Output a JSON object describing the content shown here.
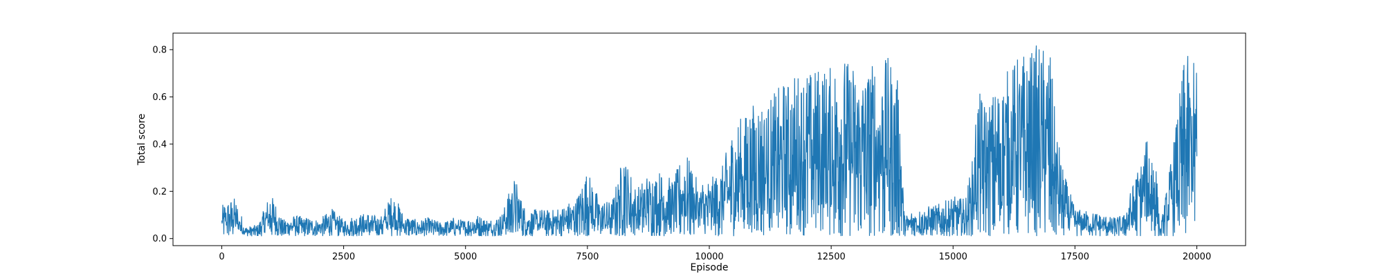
{
  "chart_data": {
    "type": "line",
    "title": "",
    "xlabel": "Episode",
    "ylabel": "Total score",
    "xlim": [
      -1000,
      21000
    ],
    "ylim": [
      -0.03,
      0.87
    ],
    "xticks": [
      0,
      2500,
      5000,
      7500,
      10000,
      12500,
      15000,
      17500,
      20000
    ],
    "yticks": [
      0.0,
      0.2,
      0.4,
      0.6,
      0.8
    ],
    "xtick_labels": [
      "0",
      "2500",
      "5000",
      "7500",
      "10000",
      "12500",
      "15000",
      "17500",
      "20000"
    ],
    "ytick_labels": [
      "0.0",
      "0.2",
      "0.4",
      "0.6",
      "0.8"
    ],
    "grid": false,
    "legend": "none",
    "line_color": "#1f77b4",
    "series": [
      {
        "x": [
          0,
          250,
          500,
          750,
          1000,
          1250,
          1500,
          1750,
          2000,
          2250,
          2500,
          2750,
          3000,
          3250,
          3500,
          3750,
          4000,
          4250,
          4500,
          4750,
          5000,
          5250,
          5500,
          5750,
          6000,
          6250,
          6500,
          6750,
          7000,
          7250,
          7500,
          7750,
          8000,
          8250,
          8500,
          8750,
          9000,
          9250,
          9500,
          9750,
          10000,
          10250,
          10500,
          10750,
          11000,
          11250,
          11500,
          11750,
          12000,
          12250,
          12500,
          12750,
          13000,
          13250,
          13500,
          13750,
          13900,
          14000,
          14250,
          14500,
          14750,
          15000,
          15250,
          15400,
          15500,
          15750,
          16000,
          16250,
          16500,
          16750,
          17000,
          17100,
          17250,
          17500,
          17750,
          18000,
          18250,
          18500,
          18750,
          19000,
          19150,
          19250,
          19500,
          19750,
          19950,
          20000
        ],
        "max": [
          0.14,
          0.18,
          0.05,
          0.06,
          0.2,
          0.08,
          0.1,
          0.09,
          0.08,
          0.13,
          0.08,
          0.1,
          0.11,
          0.09,
          0.2,
          0.1,
          0.08,
          0.09,
          0.07,
          0.09,
          0.08,
          0.1,
          0.08,
          0.11,
          0.27,
          0.11,
          0.13,
          0.12,
          0.14,
          0.17,
          0.29,
          0.17,
          0.16,
          0.37,
          0.21,
          0.28,
          0.29,
          0.25,
          0.38,
          0.25,
          0.25,
          0.3,
          0.48,
          0.55,
          0.6,
          0.6,
          0.66,
          0.7,
          0.72,
          0.74,
          0.73,
          0.78,
          0.74,
          0.75,
          0.78,
          0.76,
          0.65,
          0.1,
          0.13,
          0.14,
          0.15,
          0.18,
          0.17,
          0.34,
          0.62,
          0.59,
          0.69,
          0.76,
          0.8,
          0.83,
          0.79,
          0.5,
          0.3,
          0.13,
          0.12,
          0.11,
          0.09,
          0.1,
          0.28,
          0.44,
          0.36,
          0.04,
          0.38,
          0.78,
          0.76,
          0.74
        ],
        "min": [
          0.01,
          0.01,
          0.01,
          0.01,
          0.01,
          0.01,
          0.01,
          0.01,
          0.01,
          0.01,
          0.01,
          0.01,
          0.01,
          0.01,
          0.01,
          0.01,
          0.01,
          0.01,
          0.01,
          0.01,
          0.01,
          0.01,
          0.01,
          0.01,
          0.01,
          0.01,
          0.01,
          0.01,
          0.01,
          0.01,
          0.01,
          0.01,
          0.01,
          0.01,
          0.01,
          0.01,
          0.01,
          0.01,
          0.01,
          0.01,
          0.01,
          0.01,
          0.01,
          0.01,
          0.01,
          0.01,
          0.01,
          0.01,
          0.01,
          0.01,
          0.01,
          0.01,
          0.01,
          0.01,
          0.01,
          0.01,
          0.01,
          0.01,
          0.01,
          0.01,
          0.01,
          0.01,
          0.01,
          0.01,
          0.02,
          0.01,
          0.01,
          0.01,
          0.01,
          0.01,
          0.01,
          0.01,
          0.01,
          0.01,
          0.01,
          0.01,
          0.01,
          0.01,
          0.01,
          0.01,
          0.01,
          0.01,
          0.01,
          0.01,
          0.01,
          0.05
        ]
      }
    ]
  }
}
